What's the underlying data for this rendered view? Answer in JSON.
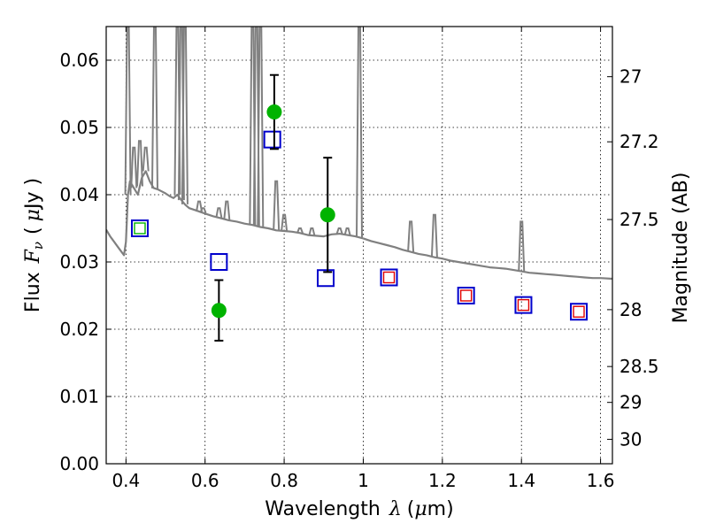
{
  "chart_data": {
    "type": "scatter",
    "title": "",
    "xlabel_prefix": "Wavelength",
    "xlabel_symbol": "λ",
    "xlabel_unit_open": "(",
    "xlabel_unit_mu": "μ",
    "xlabel_unit_rest": "m)",
    "ylabel_prefix": "Flux",
    "ylabel_symbol": "F",
    "ylabel_sub": "ν",
    "ylabel_unit_open": "(",
    "ylabel_unit_mu": "μ",
    "ylabel_unit_rest": "Jy )",
    "y2label": "Magnitude (AB)",
    "xlim": [
      0.35,
      1.63
    ],
    "ylim": [
      0.0,
      0.065
    ],
    "grid": true,
    "x_ticks": [
      0.4,
      0.6,
      0.8,
      1.0,
      1.2,
      1.4,
      1.6
    ],
    "x_tick_labels": [
      "0.4",
      "0.6",
      "0.8",
      "1",
      "1.2",
      "1.4",
      "1.6"
    ],
    "y_ticks": [
      0.0,
      0.01,
      0.02,
      0.03,
      0.04,
      0.05,
      0.06
    ],
    "y_tick_labels": [
      "0.00",
      "0.01",
      "0.02",
      "0.03",
      "0.04",
      "0.05",
      "0.06"
    ],
    "mag_ticks": [
      27,
      27.2,
      27.5,
      28,
      28.5,
      29,
      30
    ],
    "mag_tick_labels": [
      "27",
      "27.2",
      "27.5",
      "28",
      "28.5",
      "29",
      "30"
    ],
    "colors": {
      "spectrum": "#808080",
      "observed": "#00b300",
      "model_box": "#0000cc",
      "model_box_inner": "#e00000",
      "model_box_inner_green": "#00b300",
      "errorbar": "#000000"
    },
    "series": [
      {
        "kind": "spectrum",
        "x": [
          0.35,
          0.36,
          0.38,
          0.395,
          0.4,
          0.405,
          0.41,
          0.42,
          0.43,
          0.44,
          0.45,
          0.46,
          0.47,
          0.48,
          0.49,
          0.5,
          0.51,
          0.52,
          0.53,
          0.54,
          0.55,
          0.56,
          0.57,
          0.58,
          0.6,
          0.62,
          0.64,
          0.66,
          0.68,
          0.7,
          0.72,
          0.74,
          0.76,
          0.78,
          0.8,
          0.82,
          0.84,
          0.86,
          0.88,
          0.9,
          0.92,
          0.94,
          0.96,
          0.98,
          1.0,
          1.02,
          1.04,
          1.06,
          1.08,
          1.1,
          1.12,
          1.14,
          1.16,
          1.18,
          1.2,
          1.22,
          1.24,
          1.26,
          1.28,
          1.3,
          1.32,
          1.34,
          1.36,
          1.38,
          1.4,
          1.42,
          1.44,
          1.46,
          1.48,
          1.5,
          1.52,
          1.54,
          1.56,
          1.58,
          1.6,
          1.63
        ],
        "y": [
          0.0348,
          0.0338,
          0.0322,
          0.031,
          0.033,
          0.04,
          0.042,
          0.041,
          0.04,
          0.0425,
          0.0435,
          0.042,
          0.041,
          0.0408,
          0.0405,
          0.0402,
          0.0398,
          0.0395,
          0.04,
          0.0392,
          0.0385,
          0.038,
          0.0378,
          0.0376,
          0.0372,
          0.0368,
          0.0365,
          0.0362,
          0.036,
          0.0357,
          0.0355,
          0.0352,
          0.035,
          0.0347,
          0.0346,
          0.0345,
          0.0343,
          0.034,
          0.0339,
          0.0338,
          0.0341,
          0.0342,
          0.034,
          0.0338,
          0.0335,
          0.0331,
          0.0328,
          0.0325,
          0.0322,
          0.0318,
          0.0315,
          0.0312,
          0.031,
          0.0307,
          0.0305,
          0.0302,
          0.03,
          0.0298,
          0.0296,
          0.0294,
          0.0292,
          0.0291,
          0.029,
          0.0288,
          0.0286,
          0.0284,
          0.0283,
          0.0282,
          0.0281,
          0.028,
          0.0279,
          0.0278,
          0.0277,
          0.0276,
          0.0276,
          0.0275
        ]
      },
      {
        "kind": "spectrum_lines",
        "x": [
          0.405,
          0.42,
          0.435,
          0.45,
          0.473,
          0.53,
          0.54,
          0.549,
          0.585,
          0.595,
          0.635,
          0.655,
          0.72,
          0.73,
          0.74,
          0.78,
          0.8,
          0.84,
          0.87,
          0.94,
          0.96,
          0.99,
          1.12,
          1.18,
          1.4
        ],
        "y": [
          0.065,
          0.047,
          0.048,
          0.047,
          0.065,
          0.065,
          0.065,
          0.065,
          0.039,
          0.038,
          0.038,
          0.039,
          0.065,
          0.065,
          0.065,
          0.042,
          0.037,
          0.035,
          0.035,
          0.035,
          0.035,
          0.065,
          0.036,
          0.037,
          0.036
        ]
      },
      {
        "kind": "observed",
        "x": [
          0.635,
          0.775,
          0.91
        ],
        "y": [
          0.0228,
          0.0523,
          0.037
        ],
        "err": [
          0.0045,
          0.0055,
          0.0085
        ]
      },
      {
        "kind": "model",
        "x": [
          0.435,
          0.635,
          0.77,
          0.905,
          1.065,
          1.26,
          1.405,
          1.545
        ],
        "y": [
          0.035,
          0.03,
          0.0482,
          0.0276,
          0.0277,
          0.025,
          0.0236,
          0.0226
        ],
        "inner": [
          "green",
          "none",
          "none",
          "none",
          "red",
          "red",
          "red",
          "red"
        ]
      }
    ]
  }
}
